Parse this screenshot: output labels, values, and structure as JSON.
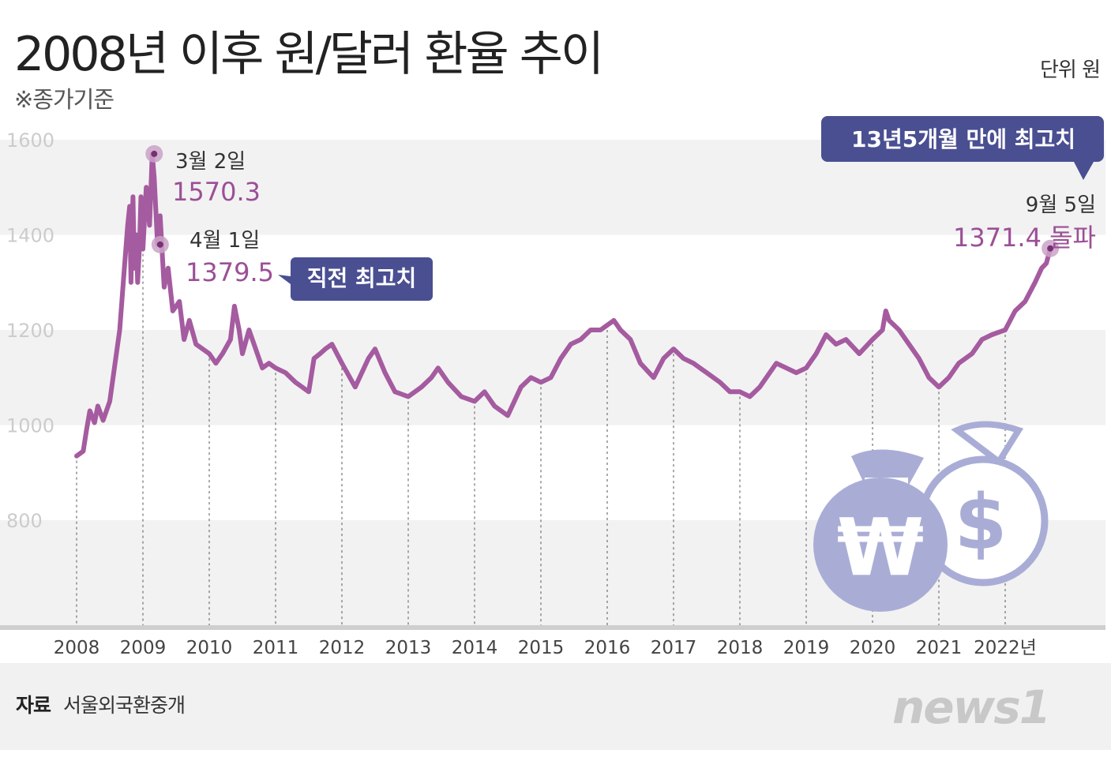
{
  "header": {
    "title": "2008년 이후 원/달러 환율 추이",
    "subtitle": "※종가기준",
    "unit": "단위 원"
  },
  "footer": {
    "source_label": "자료",
    "source": "서울외국환중개",
    "logo": "news1"
  },
  "annotations": {
    "peak_date": "3월 2일",
    "peak_value": "1570.3",
    "prev_date": "4월 1일",
    "prev_value": "1379.5",
    "prev_badge": "직전 최고치",
    "latest_badge": "13년5개월 만에 최고치",
    "latest_date": "9월 5일",
    "latest_value": "1371.4 돌파"
  },
  "colors": {
    "line": "#a55ba0",
    "value_text": "#9b4f96",
    "badge": "#4a4f92",
    "band": "#f2f2f2",
    "grid_text": "#cccccc",
    "bag": "#a9add6"
  },
  "icons": [
    "won-money-bag-icon",
    "dollar-money-bag-icon"
  ],
  "chart_data": {
    "type": "line",
    "ylim": [
      800,
      1600
    ],
    "y_ticks": [
      "1600",
      "1400",
      "1200",
      "1000",
      "800"
    ],
    "x_ticks": [
      "2008",
      "2009",
      "2010",
      "2011",
      "2012",
      "2013",
      "2014",
      "2015",
      "2016",
      "2017",
      "2018",
      "2019",
      "2020",
      "2021",
      "2022년"
    ],
    "series": [
      {
        "x": [
          2008.0,
          2008.1,
          2008.15,
          2008.2,
          2008.27,
          2008.32,
          2008.4,
          2008.5,
          2008.6,
          2008.65,
          2008.72,
          2008.77,
          2008.8,
          2008.82,
          2008.85,
          2008.87,
          2008.9,
          2008.92,
          2008.95,
          2008.97,
          2009.0,
          2009.05,
          2009.1,
          2009.14,
          2009.17,
          2009.22,
          2009.26,
          2009.32,
          2009.38,
          2009.45,
          2009.55,
          2009.62,
          2009.7,
          2009.8,
          2009.9,
          2010.0,
          2010.1,
          2010.2,
          2010.32,
          2010.38,
          2010.45,
          2010.5,
          2010.6,
          2010.7,
          2010.8,
          2010.9,
          2011.0,
          2011.15,
          2011.3,
          2011.5,
          2011.58,
          2011.67,
          2011.75,
          2011.85,
          2012.0,
          2012.2,
          2012.4,
          2012.5,
          2012.65,
          2012.8,
          2013.0,
          2013.2,
          2013.35,
          2013.45,
          2013.6,
          2013.8,
          2014.0,
          2014.15,
          2014.3,
          2014.5,
          2014.7,
          2014.85,
          2015.0,
          2015.15,
          2015.3,
          2015.45,
          2015.6,
          2015.75,
          2015.9,
          2016.1,
          2016.2,
          2016.35,
          2016.5,
          2016.7,
          2016.85,
          2017.0,
          2017.15,
          2017.3,
          2017.5,
          2017.7,
          2017.85,
          2018.0,
          2018.15,
          2018.3,
          2018.45,
          2018.55,
          2018.7,
          2018.85,
          2019.0,
          2019.15,
          2019.3,
          2019.45,
          2019.6,
          2019.8,
          2020.0,
          2020.15,
          2020.2,
          2020.25,
          2020.4,
          2020.55,
          2020.7,
          2020.85,
          2021.0,
          2021.15,
          2021.3,
          2021.5,
          2021.65,
          2021.8,
          2022.0,
          2022.15,
          2022.3,
          2022.45,
          2022.55,
          2022.62,
          2022.68
        ],
        "y": [
          935,
          945,
          990,
          1030,
          1005,
          1040,
          1010,
          1050,
          1150,
          1200,
          1330,
          1420,
          1460,
          1300,
          1480,
          1330,
          1400,
          1300,
          1380,
          1480,
          1370,
          1500,
          1420,
          1570,
          1520,
          1380,
          1440,
          1290,
          1330,
          1240,
          1260,
          1180,
          1220,
          1170,
          1160,
          1150,
          1130,
          1150,
          1180,
          1250,
          1200,
          1150,
          1200,
          1160,
          1120,
          1130,
          1120,
          1110,
          1090,
          1070,
          1140,
          1150,
          1160,
          1170,
          1130,
          1080,
          1140,
          1160,
          1110,
          1070,
          1060,
          1080,
          1100,
          1120,
          1090,
          1060,
          1050,
          1070,
          1040,
          1020,
          1080,
          1100,
          1090,
          1100,
          1140,
          1170,
          1180,
          1200,
          1200,
          1220,
          1200,
          1180,
          1130,
          1100,
          1140,
          1160,
          1140,
          1130,
          1110,
          1090,
          1070,
          1070,
          1060,
          1080,
          1110,
          1130,
          1120,
          1110,
          1120,
          1150,
          1190,
          1170,
          1180,
          1150,
          1180,
          1200,
          1240,
          1220,
          1200,
          1170,
          1140,
          1100,
          1080,
          1100,
          1130,
          1150,
          1180,
          1190,
          1200,
          1240,
          1260,
          1300,
          1330,
          1340,
          1371
        ]
      }
    ]
  }
}
